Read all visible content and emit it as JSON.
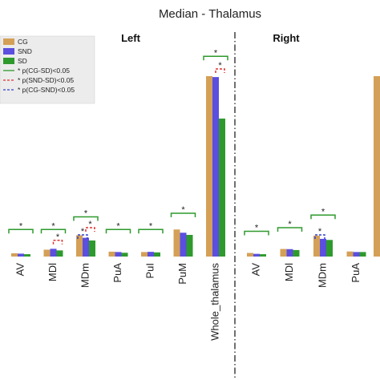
{
  "chart_data": {
    "type": "bar",
    "title": "Median - Thalamus",
    "xlabel": "",
    "ylabel": "",
    "legend_position": "top-left",
    "grid": false,
    "series_colors": [
      "#D4A057",
      "#5B4FE0",
      "#2E9A2E"
    ],
    "series_names": [
      "CG",
      "SND",
      "SD"
    ],
    "significance_legend": [
      {
        "label": "* p(CG-SD)<0.05",
        "color": "#2E9A2E",
        "style": "solid"
      },
      {
        "label": "* p(SND-SD)<0.05",
        "color": "#E03030",
        "style": "dashed"
      },
      {
        "label": "* p(CG-SND)<0.05",
        "color": "#3040D0",
        "style": "dashed"
      }
    ],
    "ylim": [
      0,
      1.0
    ],
    "panels": [
      {
        "title": "Left",
        "categories": [
          "AV",
          "MDl",
          "MDm",
          "PuA",
          "PuI",
          "PuM",
          "Whole_thalamus"
        ],
        "series": [
          {
            "name": "CG",
            "values": [
              0.018,
              0.038,
              0.118,
              0.027,
              0.025,
              0.15,
              1.0
            ]
          },
          {
            "name": "SND",
            "values": [
              0.016,
              0.043,
              0.104,
              0.025,
              0.026,
              0.132,
              0.995
            ]
          },
          {
            "name": "SD",
            "values": [
              0.013,
              0.034,
              0.089,
              0.021,
              0.023,
              0.12,
              0.765
            ]
          }
        ],
        "significance": [
          {
            "cat": 0,
            "type": "CG-SD",
            "y": 0.15
          },
          {
            "cat": 1,
            "type": "CG-SD",
            "y": 0.15
          },
          {
            "cat": 1,
            "type": "SND-SD",
            "y": 0.09
          },
          {
            "cat": 2,
            "type": "CG-SD",
            "y": 0.22
          },
          {
            "cat": 2,
            "type": "SND-SD",
            "y": 0.16
          },
          {
            "cat": 2,
            "type": "CG-SND",
            "y": 0.12
          },
          {
            "cat": 3,
            "type": "CG-SD",
            "y": 0.15
          },
          {
            "cat": 4,
            "type": "CG-SD",
            "y": 0.15
          },
          {
            "cat": 5,
            "type": "CG-SD",
            "y": 0.24
          },
          {
            "cat": 6,
            "type": "CG-SD",
            "y": 1.11
          },
          {
            "cat": 6,
            "type": "SND-SD",
            "y": 1.04
          }
        ]
      },
      {
        "title": "Right",
        "categories": [
          "AV",
          "MDl",
          "MDm",
          "PuA"
        ],
        "series": [
          {
            "name": "CG",
            "values": [
              0.02,
              0.042,
              0.116,
              0.028
            ]
          },
          {
            "name": "SND",
            "values": [
              0.015,
              0.041,
              0.098,
              0.025
            ]
          },
          {
            "name": "SD",
            "values": [
              0.013,
              0.036,
              0.092,
              0.025
            ]
          }
        ],
        "significance": [
          {
            "cat": 0,
            "type": "CG-SD",
            "y": 0.14
          },
          {
            "cat": 1,
            "type": "CG-SD",
            "y": 0.16
          },
          {
            "cat": 2,
            "type": "CG-SD",
            "y": 0.23
          },
          {
            "cat": 2,
            "type": "CG-SND",
            "y": 0.12
          }
        ],
        "extra_bar_value": 1.0
      }
    ]
  }
}
